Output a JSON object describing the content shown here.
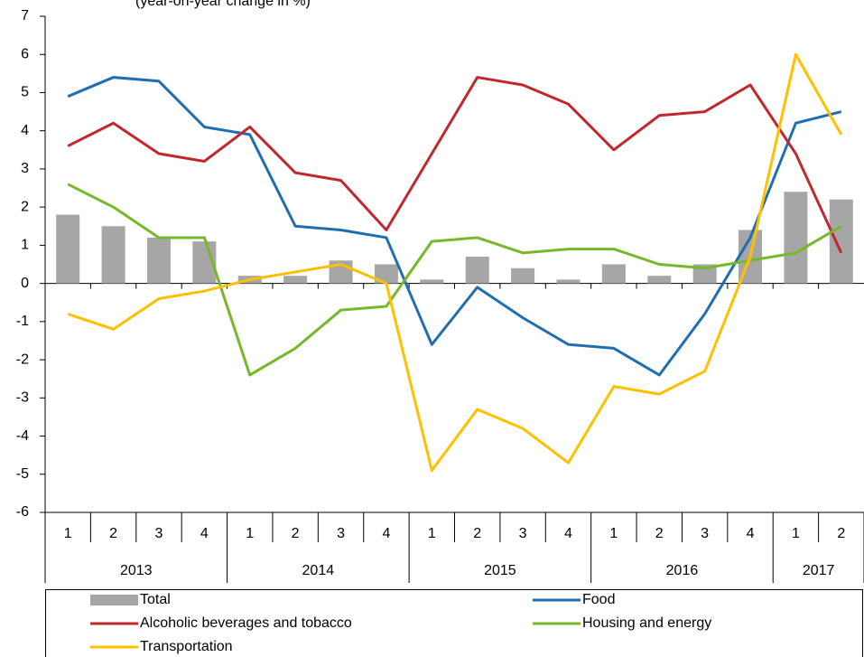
{
  "chart_data": {
    "type": "combo",
    "title": "(year-on-year change in %)",
    "categories": [
      "1",
      "2",
      "3",
      "4",
      "1",
      "2",
      "3",
      "4",
      "1",
      "2",
      "3",
      "4",
      "1",
      "2",
      "3",
      "4",
      "1",
      "2"
    ],
    "year_labels": [
      "2013",
      "2014",
      "2015",
      "2016",
      "2017"
    ],
    "series": [
      {
        "name": "Total",
        "type": "bar",
        "color": "#a6a6a6",
        "values": [
          1.8,
          1.5,
          1.2,
          1.1,
          0.2,
          0.2,
          0.6,
          0.5,
          0.1,
          0.7,
          0.4,
          0.1,
          0.5,
          0.2,
          0.5,
          1.4,
          2.4,
          2.2
        ]
      },
      {
        "name": "Food",
        "type": "line",
        "color": "#1f6eb0",
        "values": [
          4.9,
          5.4,
          5.3,
          4.1,
          3.9,
          1.5,
          1.4,
          1.2,
          -1.6,
          -0.1,
          -0.9,
          -1.6,
          -1.7,
          -2.4,
          -0.8,
          1.2,
          4.2,
          4.5
        ]
      },
      {
        "name": "Alcoholic beverages and tobacco",
        "type": "line",
        "color": "#c0282d",
        "values": [
          3.6,
          4.2,
          3.4,
          3.2,
          4.1,
          2.9,
          2.7,
          1.4,
          3.4,
          5.4,
          5.2,
          4.7,
          3.5,
          4.4,
          4.5,
          5.2,
          3.4,
          0.8
        ]
      },
      {
        "name": "Housing and energy",
        "type": "line",
        "color": "#76b82a",
        "values": [
          2.6,
          2.0,
          1.2,
          1.2,
          -2.4,
          -1.7,
          -0.7,
          -0.6,
          1.1,
          1.2,
          0.8,
          0.9,
          0.9,
          0.5,
          0.4,
          0.6,
          0.8,
          1.5
        ]
      },
      {
        "name": "Transportation",
        "type": "line",
        "color": "#ffc000",
        "values": [
          -0.8,
          -1.2,
          -0.4,
          -0.2,
          0.1,
          0.3,
          0.5,
          0.0,
          -4.9,
          -3.3,
          -3.8,
          -4.7,
          -2.7,
          -2.9,
          -2.3,
          0.7,
          6.0,
          3.9
        ]
      }
    ],
    "ylim": [
      -6,
      7
    ],
    "yticks": [
      -6,
      -5,
      -4,
      -3,
      -2,
      -1,
      0,
      1,
      2,
      3,
      4,
      5,
      6,
      7
    ],
    "grid": false,
    "legend": "bottom"
  }
}
